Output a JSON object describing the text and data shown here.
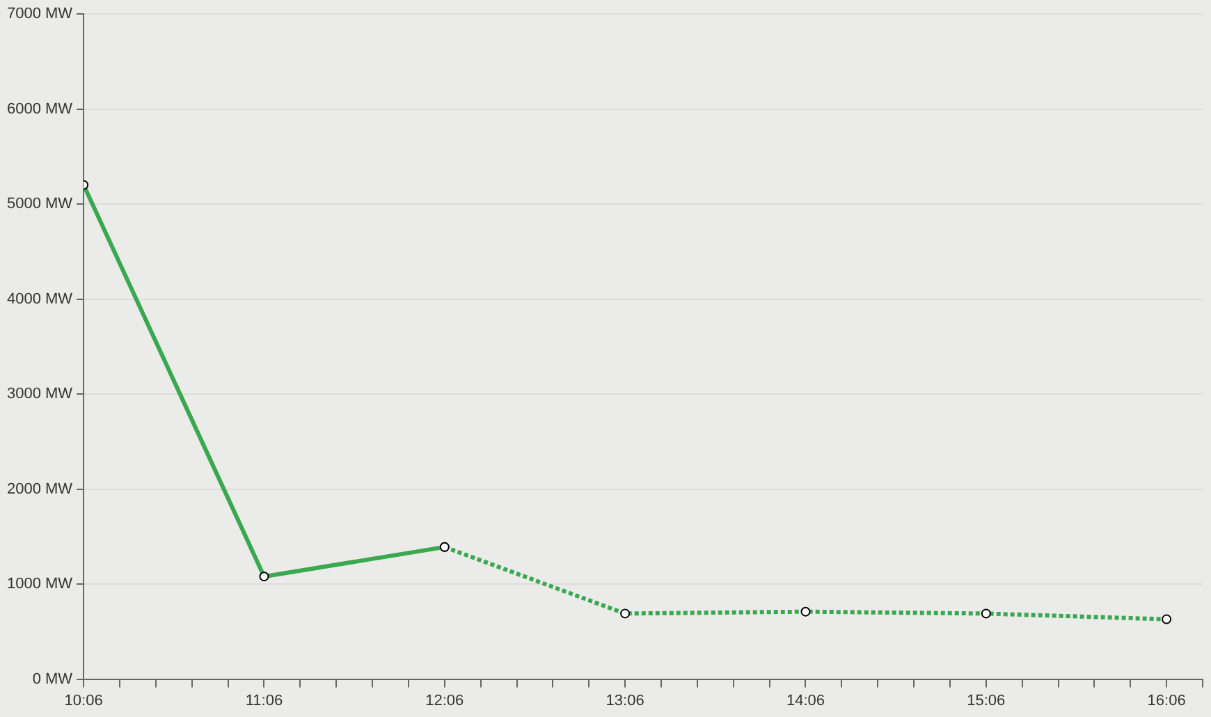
{
  "chart_data": {
    "type": "line",
    "grid": "y",
    "marker": "circle",
    "legend": false,
    "xlim": [
      10.1,
      16.3
    ],
    "xticks": [
      {
        "value": 10.1,
        "label": "10:06"
      },
      {
        "value": 10.3,
        "label": null
      },
      {
        "value": 10.5,
        "label": null
      },
      {
        "value": 10.7,
        "label": null
      },
      {
        "value": 10.9,
        "label": null
      },
      {
        "value": 11.1,
        "label": "11:06"
      },
      {
        "value": 11.3,
        "label": null
      },
      {
        "value": 11.5,
        "label": null
      },
      {
        "value": 11.7,
        "label": null
      },
      {
        "value": 11.9,
        "label": null
      },
      {
        "value": 12.1,
        "label": "12:06"
      },
      {
        "value": 12.3,
        "label": null
      },
      {
        "value": 12.5,
        "label": null
      },
      {
        "value": 12.7,
        "label": null
      },
      {
        "value": 12.9,
        "label": null
      },
      {
        "value": 13.1,
        "label": "13:06"
      },
      {
        "value": 13.3,
        "label": null
      },
      {
        "value": 13.5,
        "label": null
      },
      {
        "value": 13.7,
        "label": null
      },
      {
        "value": 13.9,
        "label": null
      },
      {
        "value": 14.1,
        "label": "14:06"
      },
      {
        "value": 14.3,
        "label": null
      },
      {
        "value": 14.5,
        "label": null
      },
      {
        "value": 14.7,
        "label": null
      },
      {
        "value": 14.9,
        "label": null
      },
      {
        "value": 15.1,
        "label": "15:06"
      },
      {
        "value": 15.3,
        "label": null
      },
      {
        "value": 15.5,
        "label": null
      },
      {
        "value": 15.7,
        "label": null
      },
      {
        "value": 15.9,
        "label": null
      },
      {
        "value": 16.1,
        "label": "16:06"
      },
      {
        "value": 16.3,
        "label": null
      }
    ],
    "ylim": [
      0,
      7000
    ],
    "yticks": [
      {
        "value": 0,
        "label": "0 MW"
      },
      {
        "value": 1000,
        "label": "1000 MW"
      },
      {
        "value": 2000,
        "label": "2000 MW"
      },
      {
        "value": 3000,
        "label": "3000 MW"
      },
      {
        "value": 4000,
        "label": "4000 MW"
      },
      {
        "value": 5000,
        "label": "5000 MW"
      },
      {
        "value": 6000,
        "label": "6000 MW"
      },
      {
        "value": 7000,
        "label": "7000 MW"
      }
    ],
    "series": [
      {
        "color": "#3aa84f",
        "line_style": "solid",
        "x": [
          10.1,
          11.1,
          12.1
        ],
        "values": [
          5200,
          1080,
          1390
        ]
      },
      {
        "color": "#3aa84f",
        "line_style": "dotted",
        "x": [
          12.1,
          13.1,
          14.1,
          15.1,
          16.1
        ],
        "values": [
          1390,
          690,
          710,
          690,
          630
        ]
      }
    ]
  }
}
